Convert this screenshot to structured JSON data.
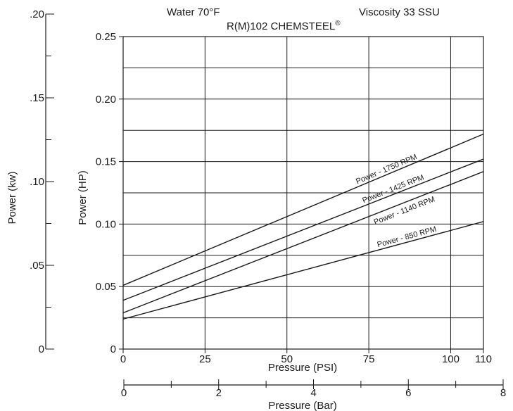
{
  "chart_data": {
    "type": "line",
    "header_left": "Water 70°F",
    "header_right": "Viscosity 33 SSU",
    "title": "R(M)102 CHEMSTEEL",
    "title_mark": "®",
    "xlabel": "Pressure (PSI)",
    "ylabel": "Power (HP)",
    "y2label": "Power (kw)",
    "x2label": "Pressure (Bar)",
    "xlim": [
      0,
      110
    ],
    "ylim": [
      0,
      0.25
    ],
    "y2lim": [
      0,
      0.2
    ],
    "x2lim": [
      0,
      8
    ],
    "x_ticks": [
      {
        "value": 0,
        "label": "0"
      },
      {
        "value": 25,
        "label": "25"
      },
      {
        "value": 50,
        "label": "50"
      },
      {
        "value": 75,
        "label": "75"
      },
      {
        "value": 100,
        "label": "100"
      },
      {
        "value": 110,
        "label": "110"
      }
    ],
    "y_ticks": [
      {
        "value": 0,
        "label": "0"
      },
      {
        "value": 0.05,
        "label": "0.05"
      },
      {
        "value": 0.1,
        "label": "0.10"
      },
      {
        "value": 0.15,
        "label": "0.15"
      },
      {
        "value": 0.2,
        "label": "0.20"
      },
      {
        "value": 0.25,
        "label": "0.25"
      }
    ],
    "y_minor_gridlines": [
      0.025,
      0.075,
      0.125,
      0.175,
      0.225
    ],
    "y2_ticks": [
      {
        "value": 0,
        "label": "0"
      },
      {
        "value": 0.05,
        "label": ".05"
      },
      {
        "value": 0.1,
        "label": ".10"
      },
      {
        "value": 0.15,
        "label": ".15"
      },
      {
        "value": 0.2,
        "label": ".20"
      }
    ],
    "y2_minor_ticks": [
      0.025,
      0.075,
      0.125,
      0.175
    ],
    "x2_ticks": [
      {
        "value": 0,
        "label": "0"
      },
      {
        "value": 2,
        "label": "2"
      },
      {
        "value": 4,
        "label": "4"
      },
      {
        "value": 6,
        "label": "6"
      },
      {
        "value": 8,
        "label": "8"
      }
    ],
    "x2_minor_ticks": [
      1,
      3,
      5,
      7
    ],
    "grid": true,
    "series": [
      {
        "name": "Power - 1750 RPM",
        "x": [
          0,
          110
        ],
        "y": [
          0.051,
          0.172
        ],
        "label_at_x": 81,
        "label_dy": -4
      },
      {
        "name": "Power - 1425 RPM",
        "x": [
          0,
          110
        ],
        "y": [
          0.039,
          0.152
        ],
        "label_at_x": 83,
        "label_dy": -4
      },
      {
        "name": "Power - 1140 RPM",
        "x": [
          0,
          110
        ],
        "y": [
          0.029,
          0.142
        ],
        "label_at_x": 85,
        "label_dy": 14
      },
      {
        "name": "Power - 850 RPM",
        "x": [
          0,
          110
        ],
        "y": [
          0.024,
          0.102
        ],
        "label_at_x": 87,
        "label_dy": -4
      }
    ]
  }
}
